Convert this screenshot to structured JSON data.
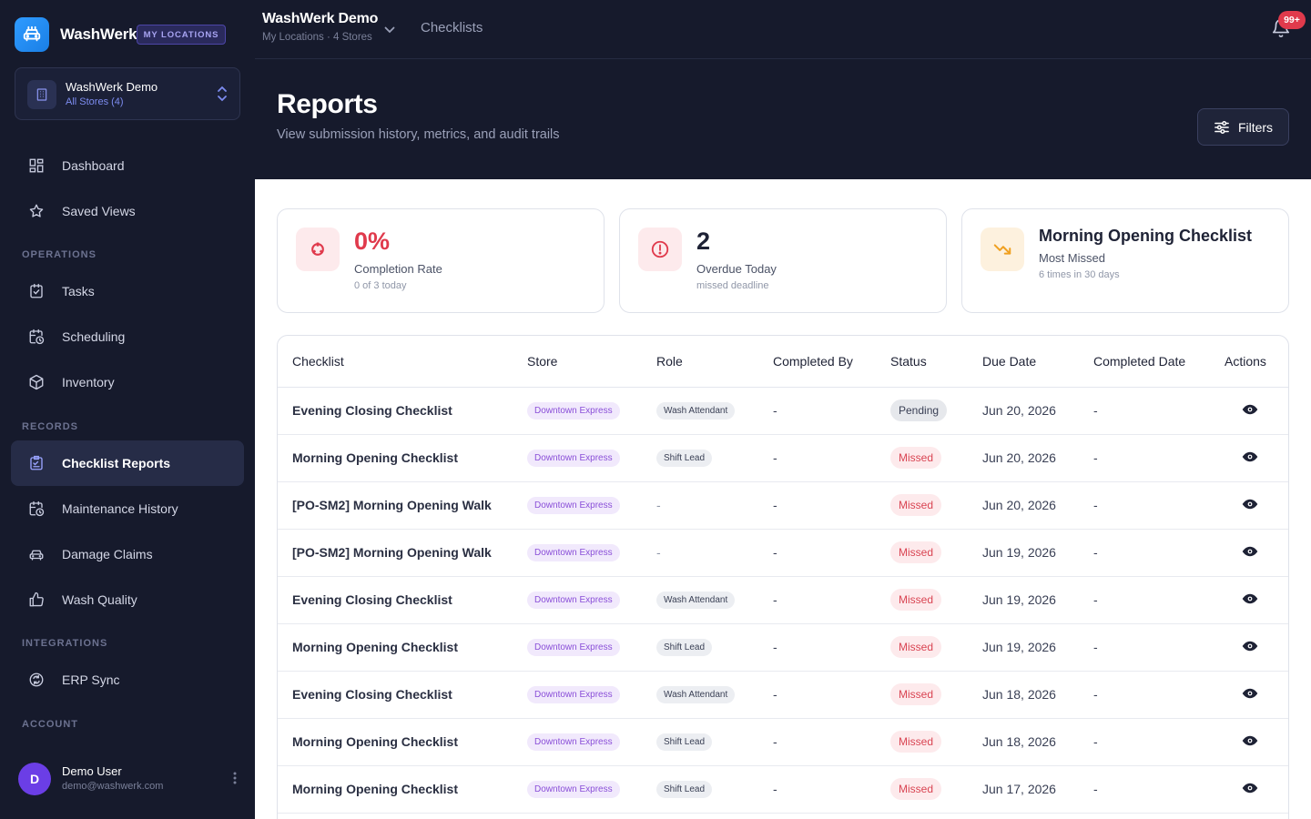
{
  "brand": {
    "name": "WashWerk",
    "badge": "MY LOCATIONS",
    "accent": "#2f9bff"
  },
  "store_switcher": {
    "name": "WashWerk Demo",
    "sub": "All Stores (4)"
  },
  "nav": {
    "top": [
      {
        "label": "Dashboard",
        "icon": "dashboard-icon"
      },
      {
        "label": "Saved Views",
        "icon": "star-icon"
      }
    ],
    "sections": {
      "operations": "OPERATIONS",
      "records": "RECORDS",
      "integrations": "INTEGRATIONS",
      "account": "ACCOUNT"
    },
    "operations": [
      {
        "label": "Tasks",
        "icon": "clipboard-check-icon"
      },
      {
        "label": "Scheduling",
        "icon": "calendar-clock-icon"
      },
      {
        "label": "Inventory",
        "icon": "box-icon"
      }
    ],
    "records": [
      {
        "label": "Checklist Reports",
        "icon": "clipboard-list-icon",
        "active": true
      },
      {
        "label": "Maintenance History",
        "icon": "calendar-clock-icon"
      },
      {
        "label": "Damage Claims",
        "icon": "car-icon"
      },
      {
        "label": "Wash Quality",
        "icon": "thumbs-up-icon"
      }
    ],
    "integrations": [
      {
        "label": "ERP Sync",
        "icon": "sync-icon"
      }
    ]
  },
  "user": {
    "initial": "D",
    "name": "Demo User",
    "email": "demo@washwerk.com"
  },
  "header": {
    "org_title": "WashWerk Demo",
    "org_sub": "My Locations · 4 Stores",
    "crumb": "Checklists",
    "notif_count": "99+"
  },
  "page": {
    "title": "Reports",
    "subtitle": "View submission history, metrics, and audit trails",
    "filters_label": "Filters"
  },
  "metrics": {
    "completion": {
      "value": "0%",
      "label": "Completion Rate",
      "sub": "0 of 3 today",
      "color": "#e03a4c"
    },
    "overdue": {
      "value": "2",
      "label": "Overdue Today",
      "sub": "missed deadline",
      "color": "#e03a4c"
    },
    "most_missed": {
      "title": "Morning Opening Checklist",
      "label": "Most Missed",
      "sub": "6 times in 30 days",
      "color": "#f0a020"
    }
  },
  "table": {
    "columns": [
      "Checklist",
      "Store",
      "Role",
      "Completed By",
      "Status",
      "Due Date",
      "Completed Date",
      "Actions"
    ],
    "rows": [
      {
        "checklist": "Evening Closing Checklist",
        "store": "Downtown Express",
        "role": "Wash Attendant",
        "completed_by": "-",
        "status": "Pending",
        "due": "Jun 20, 2026",
        "completed": "-"
      },
      {
        "checklist": "Morning Opening Checklist",
        "store": "Downtown Express",
        "role": "Shift Lead",
        "completed_by": "-",
        "status": "Missed",
        "due": "Jun 20, 2026",
        "completed": "-"
      },
      {
        "checklist": "[PO-SM2] Morning Opening Walk",
        "store": "Downtown Express",
        "role": "-",
        "completed_by": "-",
        "status": "Missed",
        "due": "Jun 20, 2026",
        "completed": "-"
      },
      {
        "checklist": "[PO-SM2] Morning Opening Walk",
        "store": "Downtown Express",
        "role": "-",
        "completed_by": "-",
        "status": "Missed",
        "due": "Jun 19, 2026",
        "completed": "-"
      },
      {
        "checklist": "Evening Closing Checklist",
        "store": "Downtown Express",
        "role": "Wash Attendant",
        "completed_by": "-",
        "status": "Missed",
        "due": "Jun 19, 2026",
        "completed": "-"
      },
      {
        "checklist": "Morning Opening Checklist",
        "store": "Downtown Express",
        "role": "Shift Lead",
        "completed_by": "-",
        "status": "Missed",
        "due": "Jun 19, 2026",
        "completed": "-"
      },
      {
        "checklist": "Evening Closing Checklist",
        "store": "Downtown Express",
        "role": "Wash Attendant",
        "completed_by": "-",
        "status": "Missed",
        "due": "Jun 18, 2026",
        "completed": "-"
      },
      {
        "checklist": "Morning Opening Checklist",
        "store": "Downtown Express",
        "role": "Shift Lead",
        "completed_by": "-",
        "status": "Missed",
        "due": "Jun 18, 2026",
        "completed": "-"
      },
      {
        "checklist": "Morning Opening Checklist",
        "store": "Downtown Express",
        "role": "Shift Lead",
        "completed_by": "-",
        "status": "Missed",
        "due": "Jun 17, 2026",
        "completed": "-"
      }
    ]
  }
}
